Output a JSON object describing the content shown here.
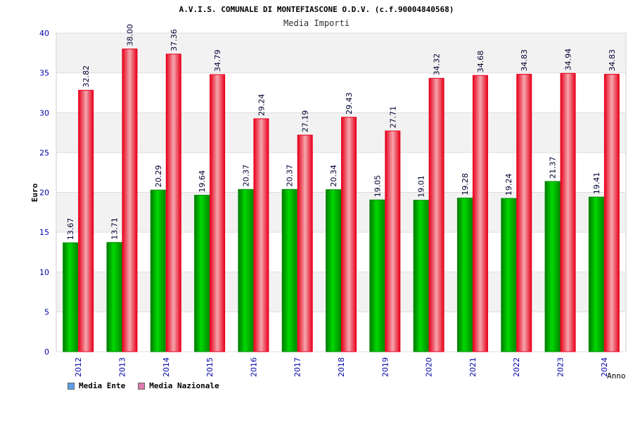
{
  "chart_data": {
    "type": "bar",
    "title": "A.V.I.S. COMUNALE DI MONTEFIASCONE O.D.V. (c.f.90004840568)",
    "subtitle": "Media Importi",
    "xlabel": "Anno",
    "ylabel": "Euro",
    "ylim": [
      0,
      40
    ],
    "yticks": [
      0,
      5,
      10,
      15,
      20,
      25,
      30,
      35,
      40
    ],
    "categories": [
      "2012",
      "2013",
      "2014",
      "2015",
      "2016",
      "2017",
      "2018",
      "2019",
      "2020",
      "2021",
      "2022",
      "2023",
      "2024"
    ],
    "series": [
      {
        "name": "Media Ente",
        "color": "#00c000",
        "legend_color": "#5aa0ea",
        "values": [
          13.67,
          13.71,
          20.29,
          19.64,
          20.37,
          20.37,
          20.34,
          19.05,
          19.01,
          19.28,
          19.24,
          21.37,
          19.41
        ],
        "labels": [
          "13.67",
          "13.71",
          "20.29",
          "19.64",
          "20.37",
          "20.37",
          "20.34",
          "19.05",
          "19.01",
          "19.28",
          "19.24",
          "21.37",
          "19.41"
        ]
      },
      {
        "name": "Media Nazionale",
        "color": "#e8001c",
        "legend_color": "#e07ab0",
        "values": [
          32.82,
          38.0,
          37.36,
          34.79,
          29.24,
          27.19,
          29.43,
          27.71,
          34.32,
          34.68,
          34.83,
          34.94,
          34.83
        ],
        "labels": [
          "32.82",
          "38.00",
          "37.36",
          "34.79",
          "29.24",
          "27.19",
          "29.43",
          "27.71",
          "34.32",
          "34.68",
          "34.83",
          "34.94",
          "34.83"
        ]
      }
    ],
    "grid": true,
    "legend_position": "bottom-left"
  }
}
